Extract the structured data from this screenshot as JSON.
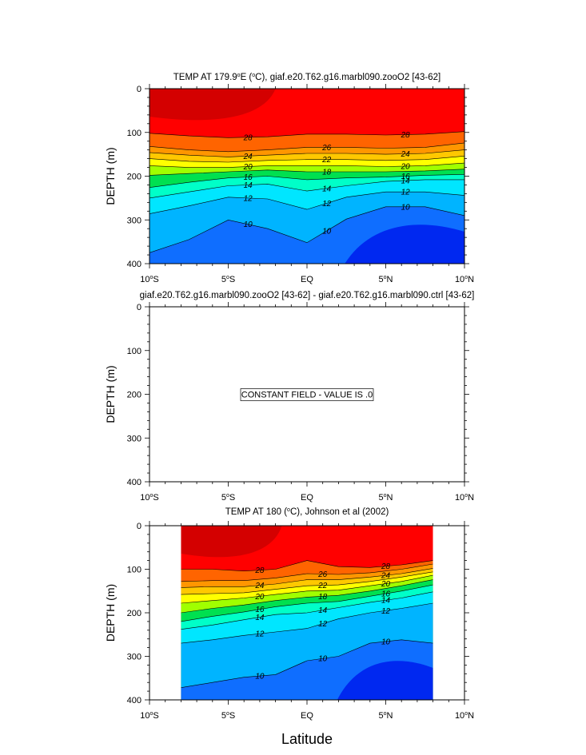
{
  "chart_data": [
    {
      "type": "contour",
      "title": "TEMP AT 179.9°E (°C), giaf.e20.T62.g16.marbl090.zooO2 [43-62]",
      "title_parts": {
        "pre": "TEMP AT 179.9",
        "deg1": "o",
        "mid": "E (",
        "deg2": "o",
        "post": "C), giaf.e20.T62.g16.marbl090.zooO2 [43-62]"
      },
      "xlabel": "",
      "ylabel": "DEPTH (m)",
      "xlim": [
        -10,
        10
      ],
      "ylim": [
        400,
        0
      ],
      "x_ticks": [
        {
          "value": -10,
          "label": "10",
          "suffix": "S"
        },
        {
          "value": -5,
          "label": "5",
          "suffix": "S"
        },
        {
          "value": 0,
          "label": "EQ",
          "suffix": ""
        },
        {
          "value": 5,
          "label": "5",
          "suffix": "N"
        },
        {
          "value": 10,
          "label": "10",
          "suffix": "N"
        }
      ],
      "y_ticks": [
        "0",
        "100",
        "200",
        "300",
        "400"
      ],
      "contour_levels": [
        10,
        12,
        14,
        16,
        18,
        20,
        22,
        24,
        26,
        28
      ],
      "isotherm_depths_x": [
        -10,
        -7.5,
        -5,
        -2.5,
        0,
        2.5,
        5,
        7.5,
        10
      ],
      "isotherms": [
        {
          "level": 28,
          "label": "28",
          "depths": [
            102,
            108,
            112,
            110,
            104,
            104,
            106,
            104,
            98
          ]
        },
        {
          "level": 26,
          "label": "26",
          "depths": [
            132,
            140,
            144,
            140,
            134,
            134,
            136,
            134,
            124
          ]
        },
        {
          "level": 24,
          "label": "24",
          "depths": [
            146,
            152,
            156,
            152,
            148,
            148,
            150,
            148,
            140
          ]
        },
        {
          "level": 22,
          "label": "22",
          "depths": [
            160,
            166,
            168,
            164,
            162,
            162,
            164,
            162,
            154
          ]
        },
        {
          "level": 20,
          "label": "20",
          "depths": [
            176,
            180,
            180,
            176,
            176,
            176,
            178,
            176,
            170
          ]
        },
        {
          "level": 18,
          "label": "18",
          "depths": [
            198,
            194,
            190,
            186,
            190,
            190,
            190,
            188,
            184
          ]
        },
        {
          "level": 16,
          "label": "16",
          "depths": [
            226,
            214,
            204,
            200,
            208,
            204,
            202,
            198,
            196
          ]
        },
        {
          "level": 14,
          "label": "14",
          "depths": [
            250,
            236,
            222,
            218,
            234,
            222,
            212,
            208,
            208
          ]
        },
        {
          "level": 12,
          "label": "12",
          "depths": [
            286,
            268,
            248,
            252,
            276,
            248,
            236,
            236,
            244
          ]
        },
        {
          "level": 10,
          "label": "10",
          "depths": [
            375,
            345,
            300,
            320,
            352,
            298,
            270,
            270,
            290
          ]
        }
      ],
      "note": ""
    },
    {
      "type": "contour",
      "title": "giaf.e20.T62.g16.marbl090.zooO2 [43-62] - giaf.e20.T62.g16.marbl090.ctrl [43-62]",
      "xlabel": "",
      "ylabel": "DEPTH (m)",
      "xlim": [
        -10,
        10
      ],
      "ylim": [
        400,
        0
      ],
      "y_ticks": [
        "0",
        "100",
        "200",
        "300",
        "400"
      ],
      "note": "CONSTANT FIELD - VALUE IS .0"
    },
    {
      "type": "contour",
      "title": "TEMP AT 180 (°C), Johnson et al (2002)",
      "title_parts": {
        "pre": "TEMP AT 180 (",
        "deg1": "o",
        "post": "C), Johnson et al (2002)"
      },
      "xlabel": "Latitude",
      "ylabel": "DEPTH (m)",
      "xlim": [
        -10,
        10
      ],
      "ylim": [
        400,
        0
      ],
      "data_xlim": [
        -8,
        8
      ],
      "y_ticks": [
        "0",
        "100",
        "200",
        "300",
        "400"
      ],
      "contour_levels": [
        10,
        12,
        14,
        16,
        18,
        20,
        22,
        24,
        26,
        28
      ],
      "isotherm_depths_x": [
        -8,
        -6,
        -4,
        -2,
        0,
        2,
        4,
        6,
        8
      ],
      "isotherms": [
        {
          "level": 28,
          "label": "28",
          "depths": [
            100,
            100,
            104,
            100,
            80,
            94,
            96,
            90,
            80
          ]
        },
        {
          "level": 26,
          "label": "26",
          "depths": [
            128,
            126,
            126,
            120,
            110,
            112,
            108,
            100,
            88
          ]
        },
        {
          "level": 24,
          "label": "24",
          "depths": [
            142,
            140,
            140,
            134,
            124,
            124,
            118,
            110,
            98
          ]
        },
        {
          "level": 22,
          "label": "22",
          "depths": [
            158,
            156,
            154,
            146,
            138,
            136,
            128,
            118,
            106
          ]
        },
        {
          "level": 20,
          "label": "20",
          "depths": [
            178,
            172,
            166,
            158,
            150,
            148,
            138,
            128,
            114
          ]
        },
        {
          "level": 18,
          "label": "18",
          "depths": [
            200,
            190,
            182,
            172,
            164,
            160,
            150,
            138,
            124
          ]
        },
        {
          "level": 16,
          "label": "16",
          "depths": [
            220,
            208,
            198,
            186,
            178,
            174,
            162,
            150,
            136
          ]
        },
        {
          "level": 14,
          "label": "14",
          "depths": [
            238,
            228,
            216,
            204,
            200,
            188,
            176,
            166,
            152
          ]
        },
        {
          "level": 12,
          "label": "12",
          "depths": [
            270,
            262,
            252,
            244,
            236,
            214,
            200,
            190,
            178
          ]
        },
        {
          "level": 10,
          "label": "10",
          "depths": [
            372,
            360,
            348,
            342,
            310,
            300,
            270,
            262,
            270
          ]
        }
      ],
      "note": ""
    }
  ]
}
